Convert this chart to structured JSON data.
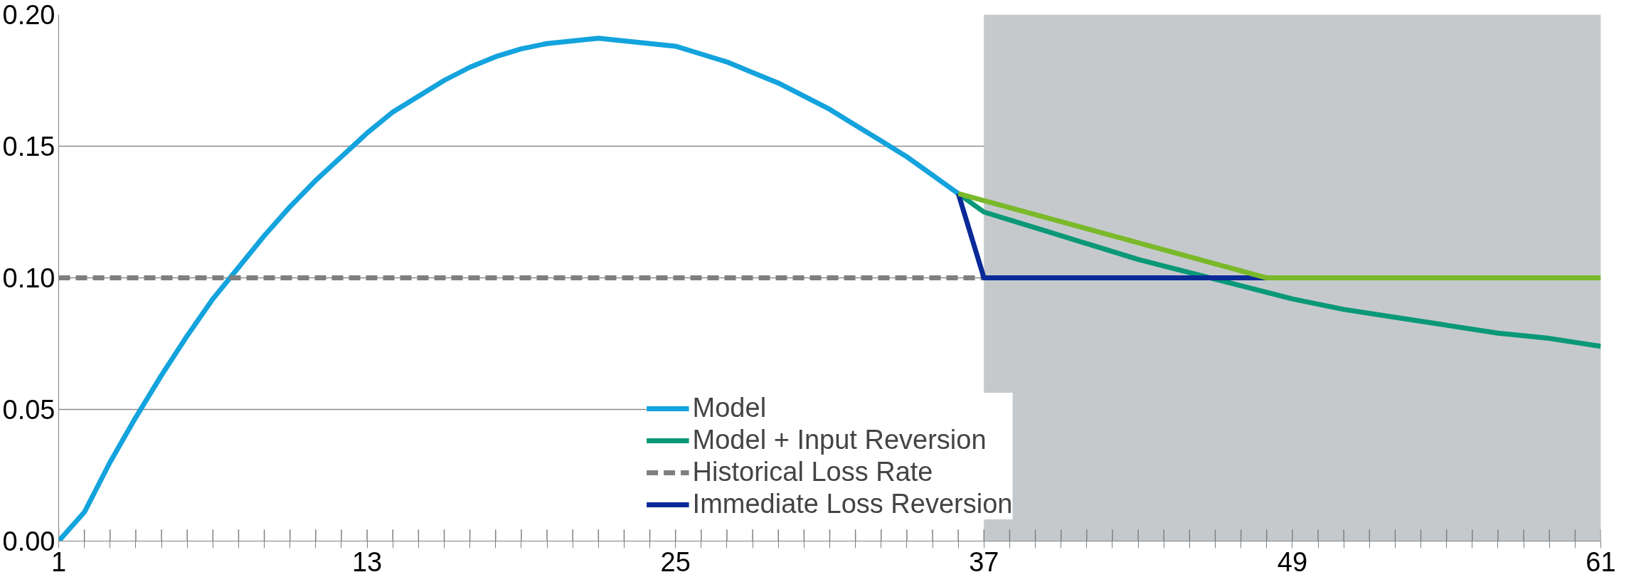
{
  "chart_data": {
    "type": "line",
    "xlim": [
      1,
      61
    ],
    "xticks": [
      1,
      {
        "value": 2,
        "label": null
      },
      {
        "value": 3,
        "label": null
      },
      {
        "value": 4,
        "label": null
      },
      {
        "value": 5,
        "label": null
      },
      {
        "value": 6,
        "label": null
      },
      {
        "value": 7,
        "label": null
      },
      {
        "value": 8,
        "label": null
      },
      {
        "value": 9,
        "label": null
      },
      {
        "value": 10,
        "label": null
      },
      {
        "value": 11,
        "label": null
      },
      {
        "value": 12,
        "label": null
      },
      13,
      {
        "value": 14,
        "label": null
      },
      {
        "value": 15,
        "label": null
      },
      {
        "value": 16,
        "label": null
      },
      {
        "value": 17,
        "label": null
      },
      {
        "value": 18,
        "label": null
      },
      {
        "value": 19,
        "label": null
      },
      {
        "value": 20,
        "label": null
      },
      {
        "value": 21,
        "label": null
      },
      {
        "value": 22,
        "label": null
      },
      {
        "value": 23,
        "label": null
      },
      {
        "value": 24,
        "label": null
      },
      25,
      {
        "value": 26,
        "label": null
      },
      {
        "value": 27,
        "label": null
      },
      {
        "value": 28,
        "label": null
      },
      {
        "value": 29,
        "label": null
      },
      {
        "value": 30,
        "label": null
      },
      {
        "value": 31,
        "label": null
      },
      {
        "value": 32,
        "label": null
      },
      {
        "value": 33,
        "label": null
      },
      {
        "value": 34,
        "label": null
      },
      {
        "value": 35,
        "label": null
      },
      {
        "value": 36,
        "label": null
      },
      37,
      {
        "value": 38,
        "label": null
      },
      {
        "value": 39,
        "label": null
      },
      {
        "value": 40,
        "label": null
      },
      {
        "value": 41,
        "label": null
      },
      {
        "value": 42,
        "label": null
      },
      {
        "value": 43,
        "label": null
      },
      {
        "value": 44,
        "label": null
      },
      {
        "value": 45,
        "label": null
      },
      {
        "value": 46,
        "label": null
      },
      {
        "value": 47,
        "label": null
      },
      {
        "value": 48,
        "label": null
      },
      49,
      {
        "value": 50,
        "label": null
      },
      {
        "value": 51,
        "label": null
      },
      {
        "value": 52,
        "label": null
      },
      {
        "value": 53,
        "label": null
      },
      {
        "value": 54,
        "label": null
      },
      {
        "value": 55,
        "label": null
      },
      {
        "value": 56,
        "label": null
      },
      {
        "value": 57,
        "label": null
      },
      {
        "value": 58,
        "label": null
      },
      {
        "value": 59,
        "label": null
      },
      {
        "value": 60,
        "label": null
      },
      61
    ],
    "ylim": [
      0,
      0.2
    ],
    "yticks": [
      {
        "value": 0,
        "label": "0.00"
      },
      {
        "value": 0.05,
        "label": "0.05"
      },
      {
        "value": 0.1,
        "label": "0.10"
      },
      {
        "value": 0.15,
        "label": "0.15"
      },
      {
        "value": 0.2,
        "label": "0.20"
      }
    ],
    "grid": "y",
    "legend": "bottom",
    "line_style": "solid",
    "marker": "none",
    "bands": [
      {
        "axis": "x",
        "from": 37,
        "to": 61,
        "color": "#c5c9cc"
      }
    ],
    "series": [
      {
        "name": "Model",
        "color": "#13a3dd",
        "x": [
          1,
          2,
          3,
          4,
          5,
          6,
          7,
          8,
          9,
          10,
          11,
          12,
          13,
          14,
          15,
          16,
          17,
          18,
          19,
          20,
          21,
          22,
          23,
          24,
          25,
          26,
          27,
          28,
          29,
          30,
          31,
          32,
          33,
          34,
          35,
          36
        ],
        "values": [
          0,
          0.011,
          0.03,
          0.047,
          0.063,
          0.078,
          0.092,
          0.104,
          0.116,
          0.127,
          0.137,
          0.146,
          0.155,
          0.163,
          0.169,
          0.175,
          0.18,
          0.184,
          0.187,
          0.189,
          0.19,
          0.191,
          0.19,
          0.189,
          0.188,
          0.185,
          0.182,
          0.178,
          0.174,
          0.169,
          0.164,
          0.158,
          0.152,
          0.146,
          0.139,
          0.132
        ]
      },
      {
        "name": "Model + Input Reversion",
        "color": "#0a9878",
        "x": [
          36,
          37,
          39,
          41,
          43,
          45,
          47,
          49,
          51,
          53,
          55,
          57,
          59,
          61
        ],
        "values": [
          0.132,
          0.125,
          0.119,
          0.113,
          0.107,
          0.102,
          0.097,
          0.092,
          0.088,
          0.085,
          0.082,
          0.079,
          0.077,
          0.074
        ]
      },
      {
        "name": "Historical Loss Rate",
        "color": "#7f7f7f",
        "line_style": "dashed",
        "x": [
          1,
          37
        ],
        "values": [
          0.1,
          0.1
        ]
      },
      {
        "name": "Immediate Loss Reversion",
        "color": "#0a2a98",
        "x": [
          36,
          37,
          48
        ],
        "values": [
          0.132,
          0.1,
          0.1
        ]
      },
      {
        "color": "#7ab929",
        "x": [
          36,
          48,
          61
        ],
        "values": [
          0.132,
          0.1,
          0.1
        ]
      }
    ]
  }
}
